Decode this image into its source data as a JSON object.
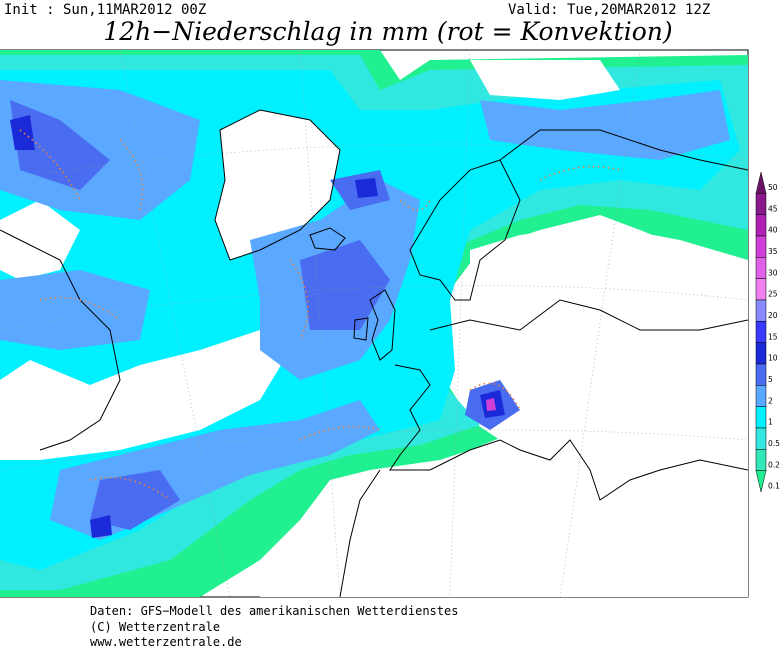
{
  "header": {
    "init": "Init : Sun,11MAR2012 00Z",
    "valid": "Valid: Tue,20MAR2012 12Z",
    "title": "12h−Niederschlag in mm (rot = Konvektion)"
  },
  "legend": {
    "levels": [
      50,
      45,
      40,
      35,
      30,
      25,
      20,
      15,
      10,
      5,
      2,
      1,
      0.5,
      0.2,
      0.1
    ],
    "colors": [
      "#6a1466",
      "#8a1a8c",
      "#b020b4",
      "#d040d8",
      "#e060e8",
      "#f080f0",
      "#8a8aff",
      "#3a3aff",
      "#1a2ad8",
      "#4a6cf0",
      "#5aa8ff",
      "#00f0ff",
      "#30e8e0",
      "#30e8b8",
      "#20f090"
    ]
  },
  "footer": {
    "lines": [
      "Daten: GFS−Modell des amerikanischen Wetterdienstes",
      "(C) Wetterzentrale",
      "www.wetterzentrale.de"
    ]
  }
}
